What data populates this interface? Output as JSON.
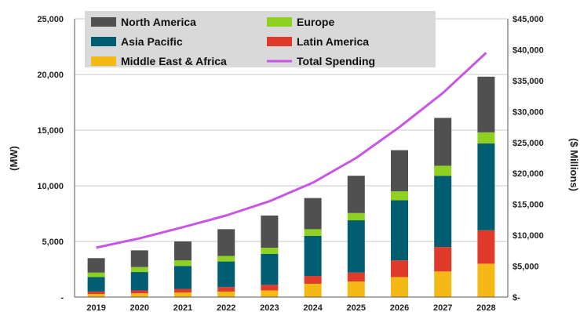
{
  "chart_data": {
    "type": "bar",
    "stacked": true,
    "categories": [
      "2019",
      "2020",
      "2021",
      "2022",
      "2023",
      "2024",
      "2025",
      "2026",
      "2027",
      "2028"
    ],
    "series": [
      {
        "name": "Middle East & Africa",
        "color": "#f5b915",
        "values": [
          280,
          340,
          420,
          500,
          600,
          1200,
          1400,
          1800,
          2300,
          3000
        ]
      },
      {
        "name": "Latin America",
        "color": "#e03a2a",
        "values": [
          220,
          260,
          320,
          400,
          500,
          700,
          800,
          1500,
          2200,
          3000
        ]
      },
      {
        "name": "Asia Pacific",
        "color": "#005d72",
        "values": [
          1300,
          1650,
          2060,
          2300,
          2780,
          3600,
          4700,
          5400,
          6400,
          7800
        ]
      },
      {
        "name": "Europe",
        "color": "#8ed120",
        "values": [
          400,
          450,
          500,
          500,
          550,
          600,
          650,
          800,
          900,
          1000
        ]
      },
      {
        "name": "North America",
        "color": "#505050",
        "values": [
          1300,
          1500,
          1700,
          2400,
          2900,
          2800,
          3350,
          3700,
          4300,
          5000
        ]
      }
    ],
    "line": {
      "name": "Total Spending",
      "color": "#c955e6",
      "axis": "right",
      "values": [
        8000,
        9500,
        11300,
        13200,
        15500,
        18500,
        22500,
        27500,
        33000,
        39500
      ]
    },
    "ylabel": "(MW)",
    "ylim": [
      0,
      25000
    ],
    "yticks": [
      "-",
      "5,000",
      "10,000",
      "15,000",
      "20,000",
      "25,000"
    ],
    "y2label": "($ Millions)",
    "y2lim": [
      0,
      45000
    ],
    "y2ticks": [
      "$-",
      "$5,000",
      "$10,000",
      "$15,000",
      "$20,000",
      "$25,000",
      "$30,000",
      "$35,000",
      "$40,000",
      "$45,000"
    ],
    "grid": true,
    "legend": {
      "placement": "top-left",
      "entries": [
        "North America",
        "Europe",
        "Asia Pacific",
        "Latin America",
        "Middle East & Africa",
        "Total Spending"
      ]
    }
  }
}
